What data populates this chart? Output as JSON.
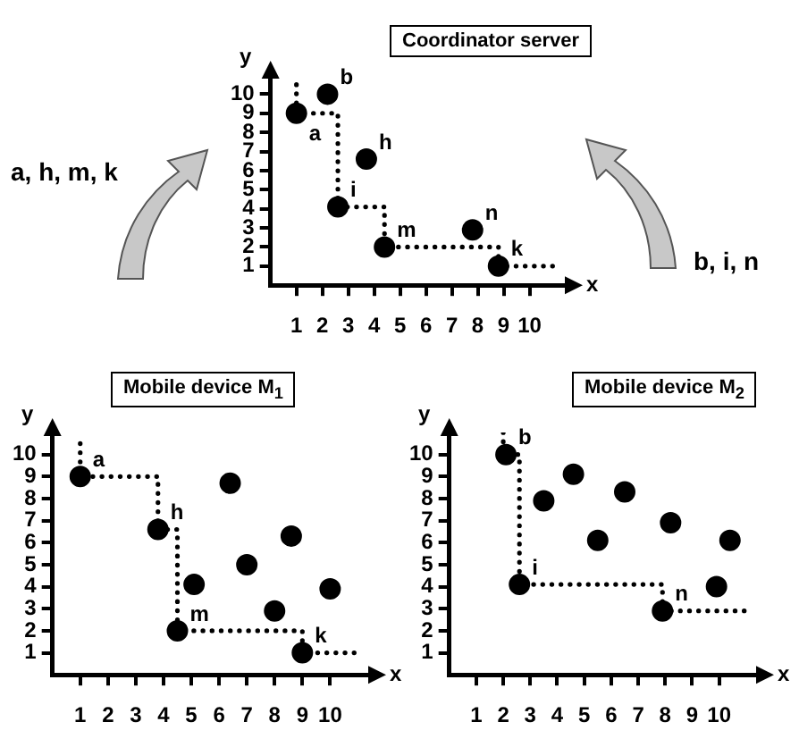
{
  "chart_data": [
    {
      "type": "scatter",
      "title": "Coordinator server",
      "xlabel": "x",
      "ylabel": "y",
      "xlim": [
        0,
        11.5
      ],
      "ylim": [
        0,
        11
      ],
      "xticks": [
        1,
        2,
        3,
        4,
        5,
        6,
        7,
        8,
        9,
        10
      ],
      "yticks": [
        1,
        2,
        3,
        4,
        5,
        6,
        7,
        8,
        9,
        10
      ],
      "series": [
        {
          "type": "scatter",
          "color": "#000000",
          "marker": "circle",
          "x": [
            1,
            2.2,
            3.7,
            2.6,
            4.4,
            7.8,
            8.8
          ],
          "values": [
            9,
            10,
            6.6,
            4.1,
            2,
            2.9,
            1
          ]
        },
        {
          "type": "line",
          "color": "#000000",
          "marker": "none",
          "line_style": "dotted",
          "x": [
            1,
            1,
            2.6,
            2.6,
            4.4,
            4.4,
            8.8,
            8.8,
            11
          ],
          "values": [
            10.5,
            9,
            9,
            4.1,
            4.1,
            2,
            2,
            1,
            1
          ]
        }
      ],
      "annotations": [
        {
          "text": "a",
          "x": 1,
          "y": 9
        },
        {
          "text": "b",
          "x": 2.2,
          "y": 10
        },
        {
          "text": "h",
          "x": 3.7,
          "y": 6.6
        },
        {
          "text": "i",
          "x": 2.6,
          "y": 4.1
        },
        {
          "text": "m",
          "x": 4.4,
          "y": 2
        },
        {
          "text": "n",
          "x": 7.8,
          "y": 2.9
        },
        {
          "text": "k",
          "x": 8.8,
          "y": 1
        },
        "a, h, m, k",
        "b, i, n"
      ]
    },
    {
      "type": "scatter",
      "title": "Mobile device M$_{1}$",
      "xlabel": "x",
      "ylabel": "y",
      "xlim": [
        0,
        11.5
      ],
      "ylim": [
        0,
        11
      ],
      "xticks": [
        1,
        2,
        3,
        4,
        5,
        6,
        7,
        8,
        9,
        10
      ],
      "yticks": [
        1,
        2,
        3,
        4,
        5,
        6,
        7,
        8,
        9,
        10
      ],
      "series": [
        {
          "type": "scatter",
          "color": "#000000",
          "marker": "circle",
          "x": [
            1,
            6.4,
            3.8,
            8.6,
            7,
            5.1,
            10,
            8,
            4.5,
            9
          ],
          "values": [
            9,
            8.7,
            6.6,
            6.3,
            5,
            4.1,
            3.9,
            2.9,
            2,
            1
          ]
        },
        {
          "type": "line",
          "color": "#000000",
          "marker": "none",
          "line_style": "dotted",
          "x": [
            1,
            1,
            3.8,
            3.8,
            4.5,
            4.5,
            9,
            9,
            11
          ],
          "values": [
            10.5,
            9,
            9,
            6.6,
            6.6,
            2,
            2,
            1,
            1
          ]
        }
      ],
      "annotations": [
        {
          "text": "a",
          "x": 1,
          "y": 9
        },
        {
          "text": "h",
          "x": 3.8,
          "y": 6.6
        },
        {
          "text": "m",
          "x": 4.5,
          "y": 2
        },
        {
          "text": "k",
          "x": 9,
          "y": 1
        }
      ]
    },
    {
      "type": "scatter",
      "title": "Mobile device M$_{2}$",
      "xlabel": "x",
      "ylabel": "y",
      "xlim": [
        0,
        11.5
      ],
      "ylim": [
        0,
        11
      ],
      "xticks": [
        1,
        2,
        3,
        4,
        5,
        6,
        7,
        8,
        9,
        10
      ],
      "yticks": [
        1,
        2,
        3,
        4,
        5,
        6,
        7,
        8,
        9,
        10
      ],
      "series": [
        {
          "type": "scatter",
          "color": "#000000",
          "marker": "circle",
          "x": [
            2.1,
            4.6,
            6.5,
            3.5,
            8.2,
            5.5,
            10.4,
            2.6,
            9.9,
            7.9
          ],
          "values": [
            10,
            9.1,
            8.3,
            7.9,
            6.9,
            6.1,
            6.1,
            4.1,
            4,
            2.9
          ]
        },
        {
          "type": "line",
          "color": "#000000",
          "marker": "none",
          "line_style": "dotted",
          "x": [
            2,
            2,
            2.6,
            2.6,
            7.9,
            7.9,
            11
          ],
          "values": [
            11,
            10,
            10,
            4.1,
            4.1,
            2.9,
            2.9
          ]
        }
      ],
      "annotations": [
        {
          "text": "b",
          "x": 2.1,
          "y": 10
        },
        {
          "text": "i",
          "x": 2.6,
          "y": 4.1
        },
        {
          "text": "n",
          "x": 7.9,
          "y": 2.9
        }
      ]
    }
  ]
}
